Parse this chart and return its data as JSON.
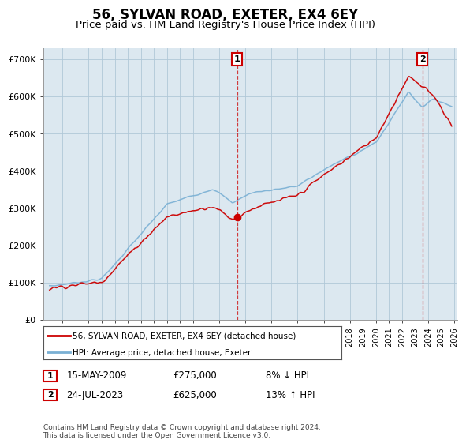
{
  "title": "56, SYLVAN ROAD, EXETER, EX4 6EY",
  "subtitle": "Price paid vs. HM Land Registry's House Price Index (HPI)",
  "ylabel_ticks": [
    "£0",
    "£100K",
    "£200K",
    "£300K",
    "£400K",
    "£500K",
    "£600K",
    "£700K"
  ],
  "ytick_values": [
    0,
    100000,
    200000,
    300000,
    400000,
    500000,
    600000,
    700000
  ],
  "ylim": [
    0,
    730000
  ],
  "xlim_start": 1994.5,
  "xlim_end": 2026.2,
  "sale1_x": 2009.37,
  "sale1_y": 275000,
  "sale1_label": "1",
  "sale1_date": "15-MAY-2009",
  "sale1_price": "£275,000",
  "sale1_hpi": "8% ↓ HPI",
  "sale2_x": 2023.56,
  "sale2_y": 625000,
  "sale2_label": "2",
  "sale2_date": "24-JUL-2023",
  "sale2_price": "£625,000",
  "sale2_hpi": "13% ↑ HPI",
  "line_color_house": "#cc0000",
  "line_color_hpi": "#7ab0d4",
  "chart_bg_color": "#dce8f0",
  "legend_label_house": "56, SYLVAN ROAD, EXETER, EX4 6EY (detached house)",
  "legend_label_hpi": "HPI: Average price, detached house, Exeter",
  "footer": "Contains HM Land Registry data © Crown copyright and database right 2024.\nThis data is licensed under the Open Government Licence v3.0.",
  "background_color": "#ffffff",
  "grid_color": "#b0c8d8",
  "title_fontsize": 12,
  "subtitle_fontsize": 9.5,
  "tick_fontsize": 8
}
